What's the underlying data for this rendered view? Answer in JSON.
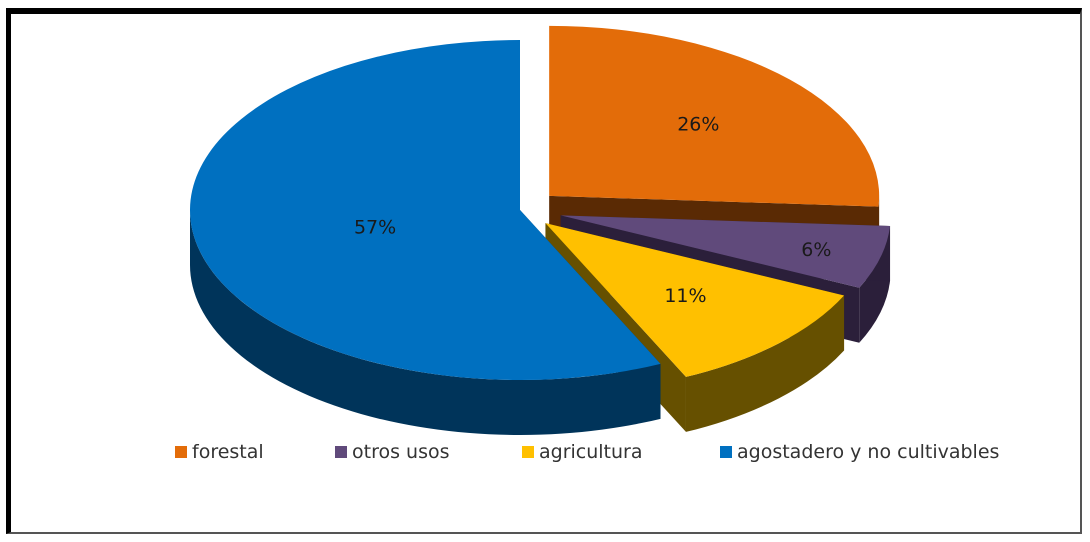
{
  "chart_data": {
    "type": "pie",
    "title": "",
    "legend_position": "bottom",
    "slices": [
      {
        "label": "forestal",
        "value": 26,
        "display": "26%",
        "color": "#E36C09",
        "shade": "#5a2a04"
      },
      {
        "label": "otros usos",
        "value": 6,
        "display": "6%",
        "color": "#604A7B",
        "shade": "#2b1f3a"
      },
      {
        "label": "agricultura",
        "value": 11,
        "display": "11%",
        "color": "#FFC000",
        "shade": "#665000"
      },
      {
        "label": "agostadero y no cultivables",
        "value": 57,
        "display": "57%",
        "color": "#0070C0",
        "shade": "#00345a"
      }
    ]
  }
}
